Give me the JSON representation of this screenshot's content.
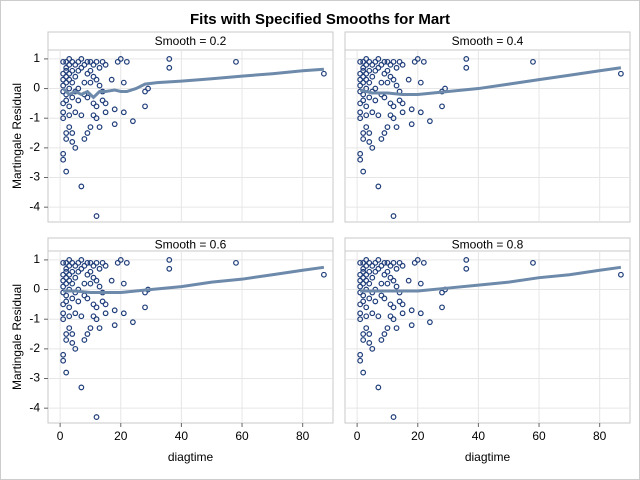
{
  "chart_data": {
    "type": "scatter",
    "title": "Fits with Specified Smooths for Mart",
    "x_label": "diagtime",
    "y_label": "Martingale Residual",
    "xlim": [
      -4,
      90
    ],
    "ylim": [
      -4.5,
      1.3
    ],
    "xticks": [
      0,
      20,
      40,
      60,
      80
    ],
    "yticks": [
      -4,
      -3,
      -2,
      -1,
      0,
      1
    ],
    "grid": true,
    "marker_color": "#1f3d7a",
    "line_color": "#6d8aab",
    "x": [
      1,
      1,
      1,
      1,
      1,
      1,
      1,
      1,
      1,
      1,
      2,
      2,
      2,
      2,
      2,
      2,
      2,
      2,
      2,
      2,
      3,
      3,
      3,
      3,
      3,
      3,
      3,
      3,
      4,
      4,
      4,
      4,
      4,
      4,
      5,
      5,
      5,
      5,
      5,
      6,
      6,
      6,
      6,
      7,
      7,
      7,
      7,
      8,
      8,
      8,
      8,
      9,
      9,
      9,
      9,
      10,
      10,
      10,
      10,
      11,
      11,
      11,
      11,
      12,
      12,
      12,
      12,
      12,
      13,
      13,
      13,
      14,
      14,
      14,
      15,
      15,
      15,
      17,
      18,
      18,
      19,
      20,
      21,
      21,
      22,
      24,
      28,
      28,
      29,
      36,
      36,
      58,
      87
    ],
    "y": [
      0.9,
      0.5,
      0.3,
      0.1,
      -0.1,
      -0.5,
      -0.8,
      -1.0,
      -2.2,
      -2.4,
      0.9,
      0.7,
      0.6,
      0.4,
      0.2,
      -0.2,
      -0.4,
      -1.5,
      -1.7,
      -2.8,
      1.0,
      0.8,
      0.5,
      0.3,
      0.0,
      -0.6,
      -0.9,
      -1.3,
      0.9,
      0.6,
      0.2,
      -0.3,
      -1.8,
      -1.5,
      0.8,
      0.4,
      -0.1,
      -0.8,
      -2.0,
      0.9,
      0.6,
      0.0,
      -0.4,
      1.0,
      0.7,
      -0.9,
      -3.3,
      0.8,
      0.2,
      -0.2,
      -1.7,
      0.9,
      0.5,
      -0.3,
      -1.5,
      0.9,
      0.6,
      0.2,
      -1.3,
      0.8,
      0.4,
      -0.5,
      -0.9,
      0.9,
      0.3,
      -0.6,
      -1.0,
      -4.3,
      0.7,
      0.1,
      -1.3,
      0.9,
      -0.1,
      -0.4,
      0.8,
      -0.5,
      -0.8,
      0.3,
      -0.7,
      -1.2,
      0.9,
      1.0,
      -0.8,
      0.2,
      0.9,
      -1.1,
      -0.6,
      -0.1,
      0.0,
      1.0,
      0.7,
      0.9,
      0.5
    ],
    "panels": [
      {
        "title": "Smooth = 0.2",
        "x": [
          1,
          3,
          5,
          7,
          9,
          11,
          13,
          15,
          18,
          20,
          22,
          25,
          28,
          32,
          40,
          50,
          60,
          70,
          80,
          87
        ],
        "y": [
          0.0,
          -0.2,
          -0.1,
          -0.2,
          -0.1,
          -0.3,
          -0.1,
          -0.1,
          -0.05,
          -0.1,
          -0.1,
          0.0,
          0.15,
          0.2,
          0.25,
          0.33,
          0.42,
          0.5,
          0.6,
          0.65
        ]
      },
      {
        "title": "Smooth = 0.4",
        "x": [
          1,
          5,
          10,
          15,
          20,
          30,
          40,
          50,
          60,
          70,
          80,
          87
        ],
        "y": [
          -0.05,
          -0.15,
          -0.15,
          -0.2,
          -0.2,
          -0.1,
          0.0,
          0.15,
          0.3,
          0.45,
          0.6,
          0.7
        ]
      },
      {
        "title": "Smooth = 0.6",
        "x": [
          1,
          5,
          10,
          15,
          20,
          30,
          40,
          50,
          60,
          70,
          80,
          87
        ],
        "y": [
          -0.05,
          -0.05,
          -0.1,
          -0.1,
          -0.1,
          0.0,
          0.1,
          0.25,
          0.35,
          0.5,
          0.65,
          0.75
        ]
      },
      {
        "title": "Smooth = 0.8",
        "x": [
          1,
          5,
          10,
          15,
          20,
          30,
          40,
          50,
          60,
          70,
          80,
          87
        ],
        "y": [
          -0.05,
          -0.05,
          -0.05,
          -0.05,
          -0.05,
          0.05,
          0.15,
          0.25,
          0.4,
          0.5,
          0.65,
          0.75
        ]
      }
    ]
  }
}
